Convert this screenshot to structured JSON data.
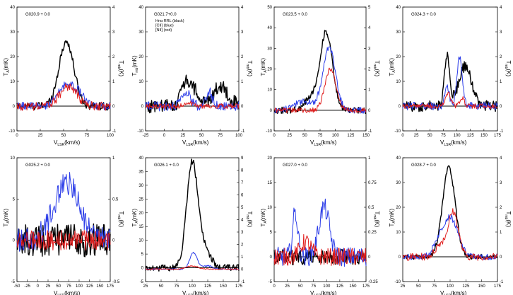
{
  "chart_data": [
    {
      "type": "line",
      "title": "G020.9 + 0.0",
      "xlim": [
        0,
        100
      ],
      "ylim": [
        -10,
        40
      ],
      "y2lim": [
        -1,
        4
      ],
      "xticks": [
        0,
        25,
        50,
        75,
        100
      ],
      "yticks": [
        -10,
        0,
        10,
        20,
        30,
        40
      ],
      "y2ticks": [
        -1,
        0,
        1,
        2,
        3,
        4
      ],
      "xlabel": "V",
      "xlabel_sub": "LSR",
      "xlabel_unit": "(km/s)",
      "ylabel": "T",
      "ylabel_sub": "A",
      "ylabel_unit": "(mK)",
      "y2label": "T",
      "y2label_sub": "mb",
      "y2label_unit": "(K)",
      "legend": [],
      "series": [
        {
          "color": "#000000",
          "peaks": [
            [
              53,
              26,
              8
            ]
          ],
          "noise": 1.6
        },
        {
          "color": "#2a3be8",
          "peaks": [
            [
              54,
              9,
              9
            ],
            [
              68,
              3,
              5
            ]
          ],
          "noise": 1.6,
          "axis": "y2",
          "scale": 0.1
        },
        {
          "color": "#e01c1c",
          "peaks": [
            [
              55,
              8,
              9
            ]
          ],
          "noise": 1.8,
          "axis": "y2",
          "scale": 0.1
        }
      ]
    },
    {
      "type": "line",
      "title": "G021.7+0.0",
      "xlim": [
        -25,
        100
      ],
      "ylim": [
        -10,
        40
      ],
      "y2lim": [
        -1,
        4
      ],
      "xticks": [
        -25,
        0,
        25,
        50,
        75,
        100
      ],
      "yticks": [
        -10,
        0,
        10,
        20,
        30,
        40
      ],
      "y2ticks": [
        -1,
        0,
        1,
        2,
        3,
        4
      ],
      "xlabel": "V",
      "xlabel_sub": "LSR",
      "xlabel_unit": "(km/s)",
      "ylabel": "T",
      "ylabel_sub": "mb",
      "ylabel_unit": "(mK)",
      "y2label": "T",
      "y2label_sub": "mb",
      "y2label_unit": "(K)",
      "legend": [
        "Hnα  RRL (black)",
        "[CII] (blue)",
        "[NII] (red)"
      ],
      "series": [
        {
          "color": "#000000",
          "peaks": [
            [
              28,
              9,
              6
            ],
            [
              40,
              6,
              6
            ],
            [
              75,
              8,
              10
            ]
          ],
          "noise": 3.0
        },
        {
          "color": "#2a3be8",
          "peaks": [
            [
              30,
              5,
              6
            ],
            [
              60,
              6,
              4
            ]
          ],
          "noise": 2.0,
          "axis": "y2",
          "scale": 0.1
        },
        {
          "color": "#e01c1c",
          "peaks": [
            [
              32,
              1.5,
              5
            ]
          ],
          "noise": 1.0,
          "axis": "y2",
          "scale": 0.1
        }
      ]
    },
    {
      "type": "line",
      "title": "G023.5 + 0.0",
      "xlim": [
        0,
        150
      ],
      "ylim": [
        -10,
        50
      ],
      "y2lim": [
        -1,
        5
      ],
      "xticks": [
        0,
        25,
        50,
        75,
        100,
        125,
        150
      ],
      "yticks": [
        -10,
        0,
        10,
        20,
        30,
        40,
        50
      ],
      "y2ticks": [
        -1,
        0,
        1,
        2,
        3,
        4,
        5
      ],
      "xlabel": "V",
      "xlabel_sub": "LSR",
      "xlabel_unit": "(km/s)",
      "ylabel": "T",
      "ylabel_sub": "A",
      "ylabel_unit": "(mK)",
      "y2label": "T",
      "y2label_sub": "mb",
      "y2label_unit": "(K)",
      "legend": [],
      "series": [
        {
          "color": "#000000",
          "peaks": [
            [
              85,
              38,
              10
            ],
            [
              60,
              6,
              10
            ]
          ],
          "noise": 1.6
        },
        {
          "color": "#2a3be8",
          "peaks": [
            [
              90,
              30,
              10
            ],
            [
              50,
              4,
              18
            ]
          ],
          "noise": 1.6,
          "axis": "y2",
          "scale": 0.1
        },
        {
          "color": "#e01c1c",
          "peaks": [
            [
              92,
              20,
              9
            ]
          ],
          "noise": 1.2,
          "axis": "y2",
          "scale": 0.1
        }
      ]
    },
    {
      "type": "line",
      "title": "G024.3 + 0.0",
      "xlim": [
        0,
        175
      ],
      "ylim": [
        -10,
        40
      ],
      "y2lim": [
        -1,
        4
      ],
      "xticks": [
        0,
        25,
        50,
        75,
        100,
        125,
        150,
        175
      ],
      "yticks": [
        -10,
        0,
        10,
        20,
        30,
        40
      ],
      "y2ticks": [
        -1,
        0,
        1,
        2,
        3,
        4
      ],
      "xlabel": "V",
      "xlabel_sub": "LSR",
      "xlabel_unit": "(km/s)",
      "ylabel": "T",
      "ylabel_sub": "A",
      "ylabel_unit": "(mK)",
      "y2label": "T",
      "y2label_sub": "mb",
      "y2label_unit": "(K)",
      "legend": [],
      "series": [
        {
          "color": "#000000",
          "peaks": [
            [
              82,
              20,
              5
            ],
            [
              115,
              16,
              12
            ]
          ],
          "noise": 2.2
        },
        {
          "color": "#2a3be8",
          "peaks": [
            [
              105,
              20,
              5
            ],
            [
              82,
              8,
              4
            ]
          ],
          "noise": 1.6,
          "axis": "y2",
          "scale": 0.1
        },
        {
          "color": "#e01c1c",
          "peaks": [
            [
              84,
              5,
              5
            ],
            [
              110,
              3,
              4
            ]
          ],
          "noise": 1.0,
          "axis": "y2",
          "scale": 0.1
        }
      ]
    },
    {
      "type": "line",
      "title": "G025.2 + 0.0",
      "xlim": [
        -50,
        175
      ],
      "ylim": [
        -5,
        10
      ],
      "y2lim": [
        -0.5,
        1.0
      ],
      "xticks": [
        -50,
        -25,
        0,
        25,
        50,
        75,
        100,
        125,
        150,
        175
      ],
      "yticks": [
        -5,
        0,
        5,
        10
      ],
      "y2ticks": [
        -0.5,
        0.0,
        0.5,
        1.0
      ],
      "xlabel": "V",
      "xlabel_sub": "LSR",
      "xlabel_unit": "(km/s)",
      "ylabel": "T",
      "ylabel_sub": "A",
      "ylabel_unit": "(mK)",
      "y2label": "T",
      "y2label_sub": "mb",
      "y2label_unit": "(K)",
      "legend": [],
      "series": [
        {
          "color": "#000000",
          "peaks": [],
          "noise": 2.0
        },
        {
          "color": "#2a3be8",
          "peaks": [
            [
              70,
              7,
              30
            ]
          ],
          "noise": 1.5,
          "axis": "y2",
          "scale": 0.1
        },
        {
          "color": "#e01c1c",
          "peaks": [],
          "noise": 1.2,
          "axis": "y2",
          "scale": 0.1
        }
      ]
    },
    {
      "type": "line",
      "title": "G026.1 + 0.0",
      "xlim": [
        25,
        175
      ],
      "ylim": [
        -5,
        40
      ],
      "y2lim": [
        -1,
        9
      ],
      "xticks": [
        25,
        50,
        75,
        100,
        125,
        150,
        175
      ],
      "yticks": [
        -5,
        0,
        5,
        10,
        15,
        20,
        25,
        30,
        35,
        40
      ],
      "y2ticks": [
        -1,
        0,
        1,
        2,
        3,
        4,
        5,
        6,
        7,
        8,
        9
      ],
      "xlabel": "V",
      "xlabel_sub": "LSR",
      "xlabel_unit": "(km/s)",
      "ylabel": "T",
      "ylabel_sub": "A",
      "ylabel_unit": "(mK)",
      "y2label": "T",
      "y2label_sub": "mb",
      "y2label_unit": "(K)",
      "legend": [],
      "series": [
        {
          "color": "#000000",
          "peaks": [
            [
              100,
              38,
              9
            ],
            [
              120,
              6,
              10
            ]
          ],
          "noise": 1.2
        },
        {
          "color": "#2a3be8",
          "peaks": [
            [
              102,
              6,
              6
            ],
            [
              125,
              1.2,
              8
            ]
          ],
          "noise": 0.25,
          "axis": "y2",
          "scale": 0.222
        },
        {
          "color": "#e01c1c",
          "peaks": [
            [
              100,
              1.2,
              9
            ]
          ],
          "noise": 0.2,
          "axis": "y2",
          "scale": 0.222
        }
      ]
    },
    {
      "type": "line",
      "title": "G027.0 + 0.0",
      "xlim": [
        0,
        175
      ],
      "ylim": [
        -5,
        20
      ],
      "y2lim": [
        -0.25,
        1.0
      ],
      "xticks": [
        0,
        25,
        50,
        75,
        100,
        125,
        150,
        175
      ],
      "yticks": [
        -5,
        0,
        5,
        10,
        15,
        20
      ],
      "y2ticks": [
        -0.25,
        0.0,
        0.25,
        0.5,
        0.75,
        1.0
      ],
      "xlabel": "V",
      "xlabel_sub": "LSR",
      "xlabel_unit": "(km/s)",
      "ylabel": "T",
      "ylabel_sub": "A",
      "ylabel_unit": "(mK)",
      "y2label": "T",
      "y2label_sub": "mb",
      "y2label_unit": "(K)",
      "legend": [],
      "series": [
        {
          "color": "#000000",
          "peaks": [],
          "noise": 1.6
        },
        {
          "color": "#2a3be8",
          "peaks": [
            [
              40,
              9,
              5
            ],
            [
              95,
              10,
              10
            ]
          ],
          "noise": 2.0,
          "axis": "y2",
          "scale": 0.05
        },
        {
          "color": "#e01c1c",
          "peaks": [
            [
              60,
              3,
              10
            ]
          ],
          "noise": 1.8,
          "axis": "y2",
          "scale": 0.05
        }
      ]
    },
    {
      "type": "line",
      "title": "G028.7 + 0.0",
      "xlim": [
        25,
        175
      ],
      "ylim": [
        -10,
        40
      ],
      "y2lim": [
        -1,
        4
      ],
      "xticks": [
        25,
        50,
        75,
        100,
        125,
        150,
        175
      ],
      "yticks": [
        -10,
        0,
        10,
        20,
        30,
        40
      ],
      "y2ticks": [
        -1,
        0,
        1,
        2,
        3,
        4
      ],
      "xlabel": "V",
      "xlabel_sub": "LSR",
      "xlabel_unit": "(km/s)",
      "ylabel": "T",
      "ylabel_sub": "A",
      "ylabel_unit": "(mK)",
      "y2label": "T",
      "y2label_sub": "mb",
      "y2label_unit": "(K)",
      "legend": [],
      "series": [
        {
          "color": "#000000",
          "peaks": [
            [
              98,
              36,
              10
            ]
          ],
          "noise": 1.0
        },
        {
          "color": "#2a3be8",
          "peaks": [
            [
              100,
              16,
              12
            ],
            [
              80,
              4,
              8
            ]
          ],
          "noise": 1.2,
          "axis": "y2",
          "scale": 0.1
        },
        {
          "color": "#e01c1c",
          "peaks": [
            [
              105,
              18,
              8
            ],
            [
              85,
              5,
              8
            ]
          ],
          "noise": 1.5,
          "axis": "y2",
          "scale": 0.1
        }
      ]
    }
  ]
}
